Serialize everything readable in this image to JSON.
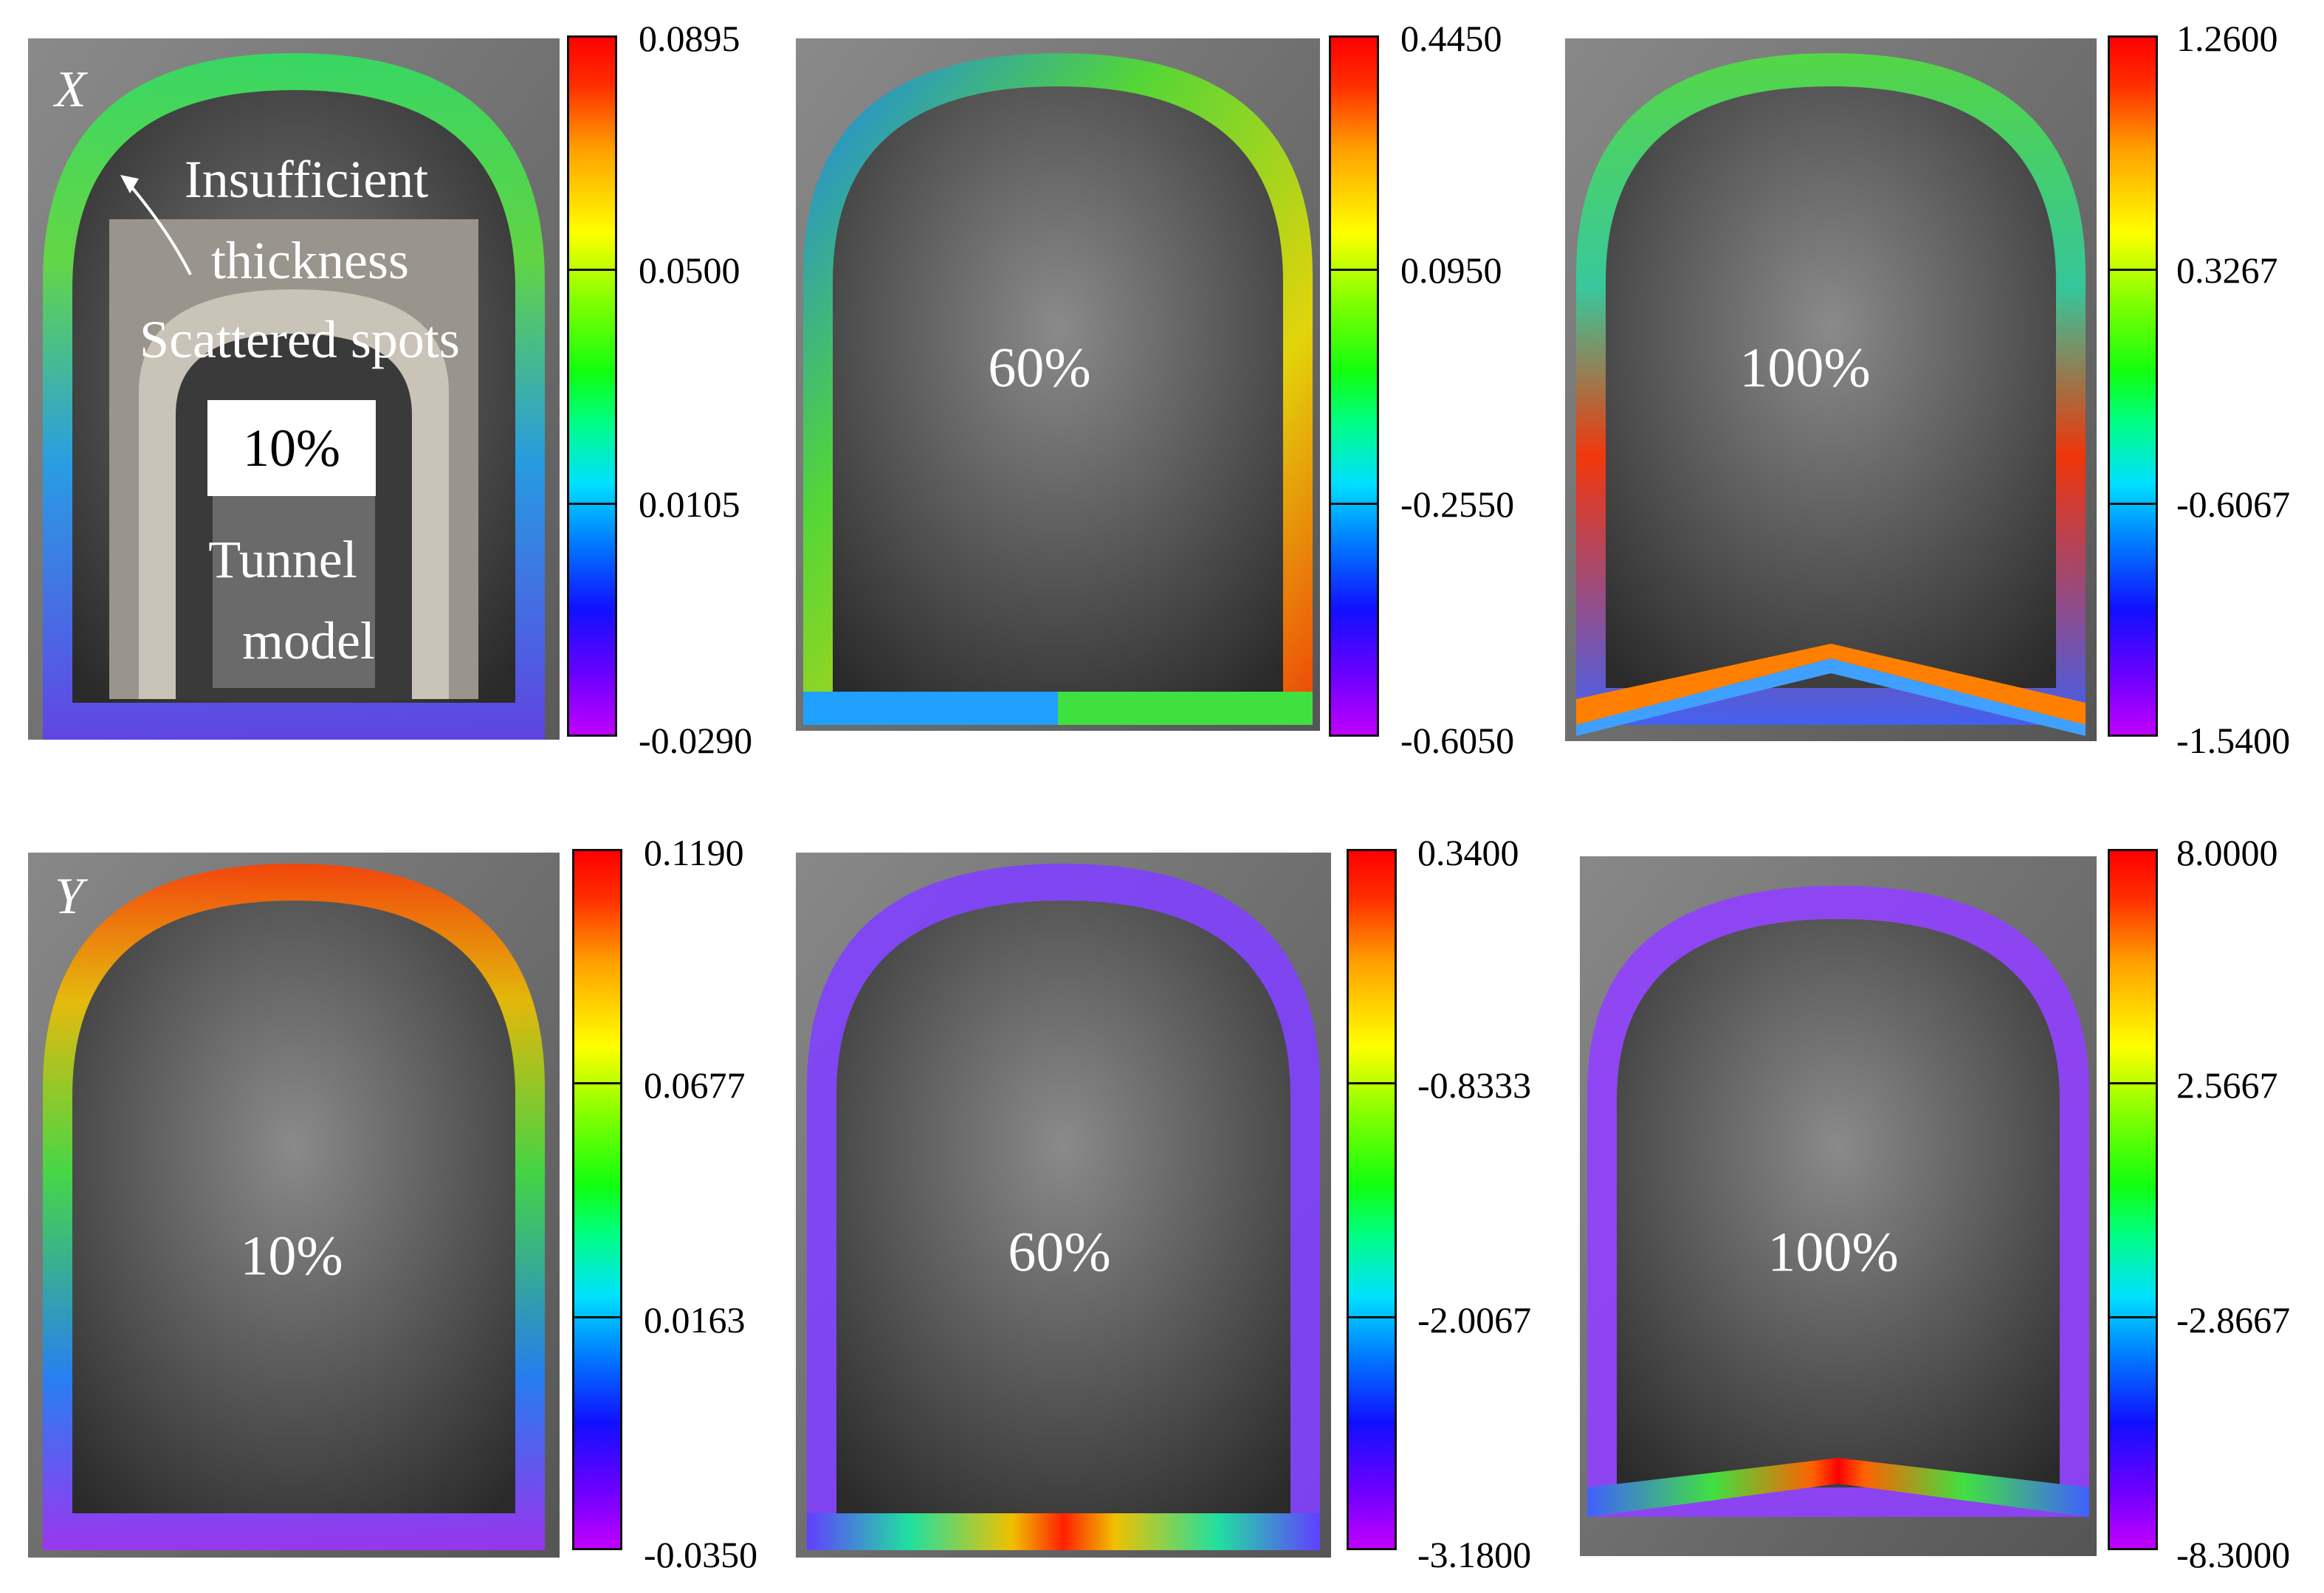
{
  "figure": {
    "rows": [
      {
        "axis": "X",
        "panels": [
          {
            "label": "10%",
            "colorbar": [
              "0.0895",
              "0.0500",
              "0.0105",
              "-0.0290"
            ],
            "annotations": {
              "note_line1": "Insufficient",
              "note_line2": "thickness",
              "note_line3": "Scattered spots",
              "inset_line1": "Tunnel",
              "inset_line2": "model"
            }
          },
          {
            "label": "60%",
            "colorbar": [
              "0.4450",
              "0.0950",
              "-0.2550",
              "-0.6050"
            ]
          },
          {
            "label": "100%",
            "colorbar": [
              "1.2600",
              "0.3267",
              "-0.6067",
              "-1.5400"
            ]
          }
        ]
      },
      {
        "axis": "Y",
        "panels": [
          {
            "label": "10%",
            "colorbar": [
              "0.1190",
              "0.0677",
              "0.0163",
              "-0.0350"
            ]
          },
          {
            "label": "60%",
            "colorbar": [
              "0.3400",
              "-0.8333",
              "-2.0067",
              "-3.1800"
            ]
          },
          {
            "label": "100%",
            "colorbar": [
              "8.0000",
              "2.5667",
              "-2.8667",
              "-8.3000"
            ]
          }
        ]
      }
    ],
    "colors": {
      "background": "#ffffff",
      "photo_dark": "#2e2e2e",
      "photo_light": "#8a8a8a",
      "contour_min": "#b000ff",
      "contour_max": "#ff0000"
    }
  }
}
